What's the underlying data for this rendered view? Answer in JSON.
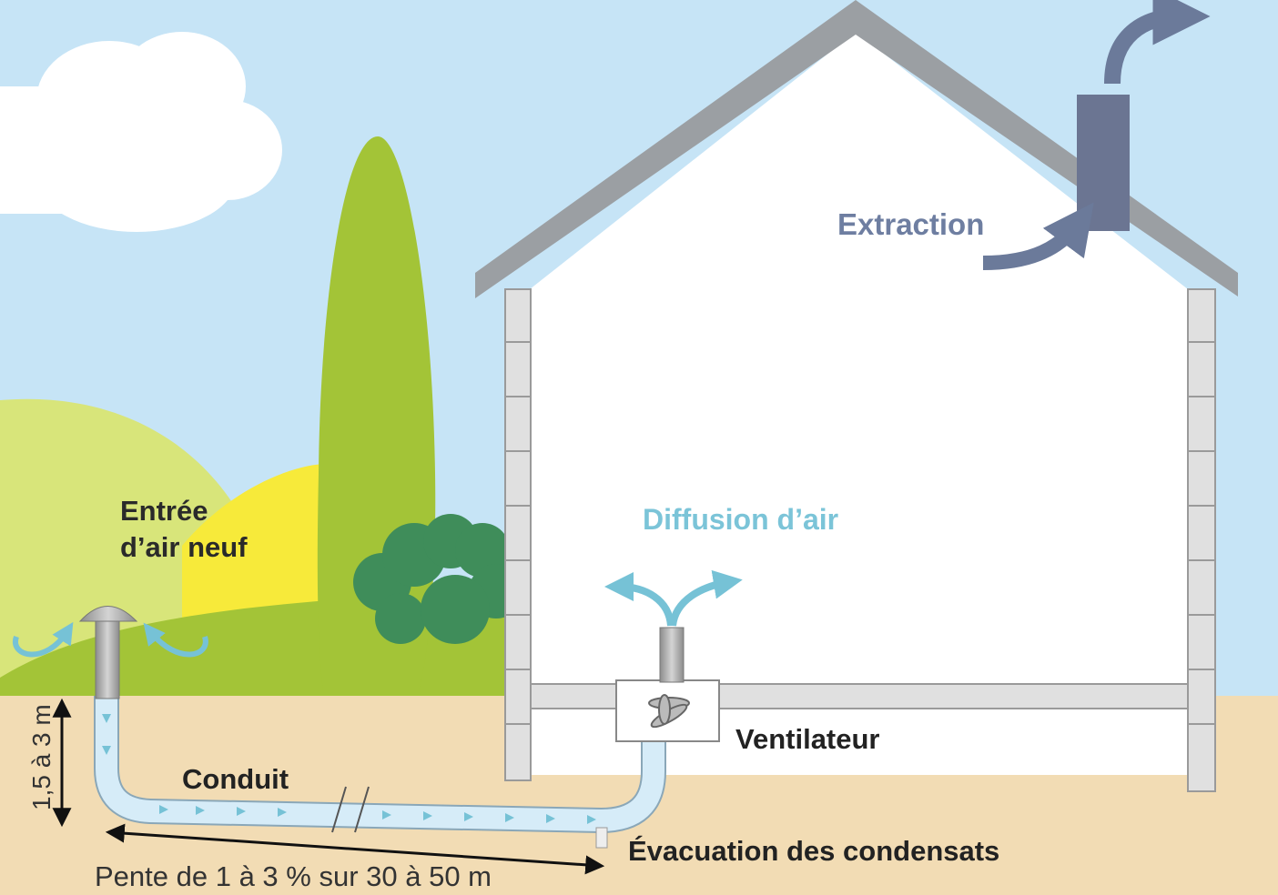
{
  "labels": {
    "extraction": "Extraction",
    "diffusion": "Diffusion d’air",
    "entree_line1": "Entrée",
    "entree_line2": "d’air neuf",
    "ventilateur": "Ventilateur",
    "conduit": "Conduit",
    "evacuation": "Évacuation des condensats",
    "pente": "Pente de 1 à 3 % sur 30 à 50 m",
    "profondeur": "1,5 à 3 m"
  },
  "colors": {
    "sky": "#c6e4f6",
    "ground": "#f2dcb4",
    "roof": "#9b9fa3",
    "chimney": "#6b7592",
    "extraction_arrow": "#6b7a9a",
    "air_arrow": "#76c2d6",
    "duct": "#d6ecf8",
    "tree": "#a3c437",
    "bush": "#3f8d5a"
  }
}
